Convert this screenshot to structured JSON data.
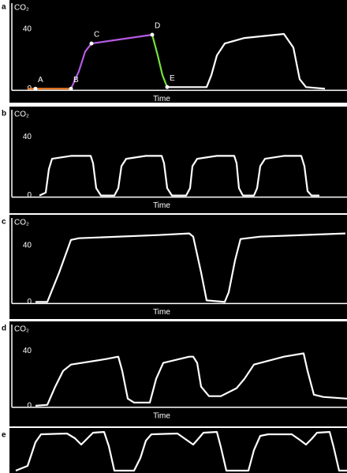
{
  "chart_data": [
    {
      "type": "line",
      "panel_label": "a",
      "y_label": "CO₂",
      "x_label": "Time",
      "xlim": [
        0,
        440
      ],
      "ylim": [
        -3,
        57
      ],
      "yticks": [
        0,
        40
      ],
      "series": [
        {
          "color": "#f07a20",
          "x": [
            35,
            60,
            90
          ],
          "values": [
            0,
            0,
            0
          ]
        },
        {
          "color": "#b55be0",
          "x": [
            90,
            100,
            108,
            116,
            193
          ],
          "values": [
            0,
            11.7,
            25,
            30.4,
            36.3
          ]
        },
        {
          "color": "#74e03c",
          "x": [
            193,
            200,
            206,
            212
          ],
          "values": [
            36.3,
            22.4,
            9.1,
            1.1
          ]
        },
        {
          "color": "#ffffff",
          "x": [
            212,
            262,
            268,
            275,
            285,
            310,
            360,
            372,
            380,
            388,
            412
          ],
          "values": [
            1.1,
            1.1,
            9.1,
            22.4,
            30.4,
            34.1,
            36.8,
            27.7,
            6.4,
            1.1,
            0
          ]
        }
      ],
      "points": {
        "labels": [
          "A",
          "B",
          "C",
          "D",
          "E"
        ],
        "x": [
          45,
          90,
          116,
          193,
          212
        ],
        "values": [
          0,
          0,
          30.4,
          36.3,
          1.1
        ]
      }
    },
    {
      "type": "line",
      "panel_label": "b",
      "y_label": "CO₂",
      "x_label": "Time",
      "xlim": [
        0,
        440
      ],
      "ylim": [
        -11,
        59
      ],
      "yticks": [
        0,
        40
      ],
      "series": [
        {
          "color": "#ffffff",
          "x": [
            50,
            58,
            62,
            66,
            90,
            115,
            118,
            122,
            128,
            145,
            150,
            154,
            160,
            185,
            205,
            208,
            212,
            218,
            236,
            241,
            244,
            250,
            275,
            297,
            300,
            303,
            308,
            322,
            326,
            330,
            336,
            360,
            382,
            386,
            390,
            395,
            405
          ],
          "values": [
            0,
            2,
            18,
            25,
            27,
            27,
            22,
            5,
            0,
            0,
            5,
            20,
            25,
            27,
            27,
            22,
            5,
            0,
            0,
            5,
            20,
            25,
            27,
            27,
            22,
            5,
            0,
            0,
            5,
            20,
            25,
            27,
            27,
            20,
            3,
            0,
            0
          ]
        }
      ]
    },
    {
      "type": "line",
      "panel_label": "c",
      "y_label": "CO₂",
      "x_label": "Time",
      "xlim": [
        0,
        440
      ],
      "ylim": [
        -11,
        60
      ],
      "yticks": [
        0,
        40
      ],
      "series": [
        {
          "color": "#ffffff",
          "x": [
            45,
            60,
            75,
            90,
            100,
            200,
            240,
            245,
            255,
            262,
            285,
            290,
            298,
            305,
            330,
            438
          ],
          "values": [
            0,
            0,
            20.8,
            43.9,
            45.1,
            47.3,
            48.5,
            46.2,
            20.8,
            1.1,
            0,
            6.8,
            29.3,
            44.5,
            46.2,
            48.5
          ]
        }
      ]
    },
    {
      "type": "line",
      "panel_label": "d",
      "y_label": "CO₂",
      "x_label": "Time",
      "xlim": [
        0,
        440
      ],
      "ylim": [
        -14,
        60
      ],
      "yticks": [
        0,
        40
      ],
      "series": [
        {
          "color": "#ffffff",
          "x": [
            45,
            60,
            70,
            80,
            90,
            135,
            150,
            155,
            162,
            170,
            190,
            198,
            207,
            240,
            245,
            250,
            255,
            265,
            280,
            300,
            310,
            322,
            360,
            385,
            390,
            398,
            410,
            440
          ],
          "values": [
            0,
            0.6,
            13.9,
            25.5,
            30.1,
            34.2,
            35.9,
            25.5,
            5.2,
            2.3,
            2.3,
            19.7,
            31.3,
            35.9,
            35.9,
            31.3,
            13.9,
            7,
            7,
            12.8,
            19.7,
            30.1,
            35.9,
            38.3,
            25.5,
            8.1,
            6.4,
            5.2
          ]
        }
      ]
    },
    {
      "type": "line",
      "panel_label": "e",
      "xlim": [
        0,
        440
      ],
      "ylim": [
        0,
        56
      ],
      "series": [
        {
          "color": "#ffffff",
          "x": [
            20,
            35,
            45,
            52,
            85,
            95,
            103,
            110,
            118,
            132,
            138,
            145,
            170,
            178,
            185,
            192,
            225,
            235,
            245,
            252,
            258,
            275,
            280,
            287,
            315,
            322,
            330,
            340,
            370,
            380,
            388,
            395,
            402,
            418,
            423,
            430,
            440
          ],
          "values": [
            3,
            9,
            39,
            49,
            50,
            44,
            36,
            43,
            51,
            52,
            34,
            3,
            3,
            19,
            41,
            49,
            50,
            43,
            36,
            44,
            51,
            52,
            33,
            3,
            3,
            29,
            47,
            49,
            49,
            42,
            36,
            43,
            51,
            52,
            33,
            3,
            3
          ]
        }
      ]
    }
  ]
}
